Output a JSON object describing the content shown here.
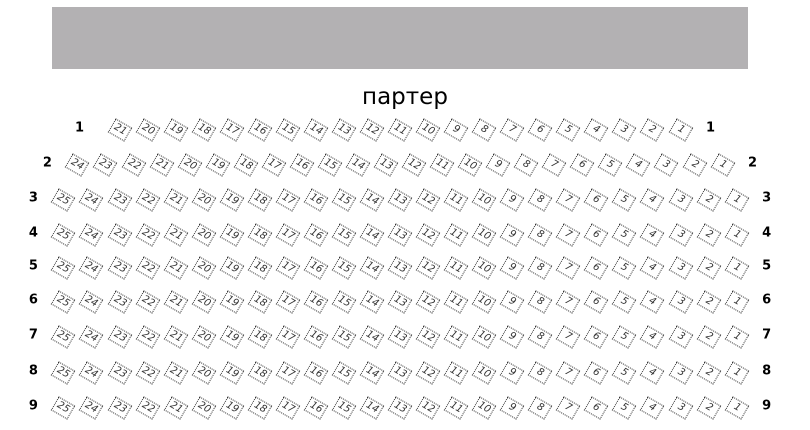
{
  "screen_color": "#b3b1b3",
  "hall_label": "партер",
  "rows": [
    {
      "label": "1",
      "seats": [
        "21",
        "20",
        "19",
        "18",
        "17",
        "16",
        "15",
        "14",
        "13",
        "12",
        "11",
        "10",
        "9",
        "8",
        "7",
        "6",
        "5",
        "4",
        "3",
        "2",
        "1"
      ]
    },
    {
      "label": "2",
      "seats": [
        "24",
        "23",
        "22",
        "21",
        "20",
        "19",
        "18",
        "17",
        "16",
        "15",
        "14",
        "13",
        "12",
        "11",
        "10",
        "9",
        "8",
        "7",
        "6",
        "5",
        "4",
        "3",
        "2",
        "1"
      ]
    },
    {
      "label": "3",
      "seats": [
        "25",
        "24",
        "23",
        "22",
        "21",
        "20",
        "19",
        "18",
        "17",
        "16",
        "15",
        "14",
        "13",
        "12",
        "11",
        "10",
        "9",
        "8",
        "7",
        "6",
        "5",
        "4",
        "3",
        "2",
        "1"
      ]
    },
    {
      "label": "4",
      "seats": [
        "25",
        "24",
        "23",
        "22",
        "21",
        "20",
        "19",
        "18",
        "17",
        "16",
        "15",
        "14",
        "13",
        "12",
        "11",
        "10",
        "9",
        "8",
        "7",
        "6",
        "5",
        "4",
        "3",
        "2",
        "1"
      ]
    },
    {
      "label": "5",
      "seats": [
        "25",
        "24",
        "23",
        "22",
        "21",
        "20",
        "19",
        "18",
        "17",
        "16",
        "15",
        "14",
        "13",
        "12",
        "11",
        "10",
        "9",
        "8",
        "7",
        "6",
        "5",
        "4",
        "3",
        "2",
        "1"
      ]
    },
    {
      "label": "6",
      "seats": [
        "25",
        "24",
        "23",
        "22",
        "21",
        "20",
        "19",
        "18",
        "17",
        "16",
        "15",
        "14",
        "13",
        "12",
        "11",
        "10",
        "9",
        "8",
        "7",
        "6",
        "5",
        "4",
        "3",
        "2",
        "1"
      ]
    },
    {
      "label": "7",
      "seats": [
        "25",
        "24",
        "23",
        "22",
        "21",
        "20",
        "19",
        "18",
        "17",
        "16",
        "15",
        "14",
        "13",
        "12",
        "11",
        "10",
        "9",
        "8",
        "7",
        "6",
        "5",
        "4",
        "3",
        "2",
        "1"
      ]
    },
    {
      "label": "8",
      "seats": [
        "25",
        "24",
        "23",
        "22",
        "21",
        "20",
        "19",
        "18",
        "17",
        "16",
        "15",
        "14",
        "13",
        "12",
        "11",
        "10",
        "9",
        "8",
        "7",
        "6",
        "5",
        "4",
        "3",
        "2",
        "1"
      ]
    },
    {
      "label": "9",
      "seats": [
        "25",
        "24",
        "23",
        "22",
        "21",
        "20",
        "19",
        "18",
        "17",
        "16",
        "15",
        "14",
        "13",
        "12",
        "11",
        "10",
        "9",
        "8",
        "7",
        "6",
        "5",
        "4",
        "3",
        "2",
        "1"
      ]
    }
  ]
}
